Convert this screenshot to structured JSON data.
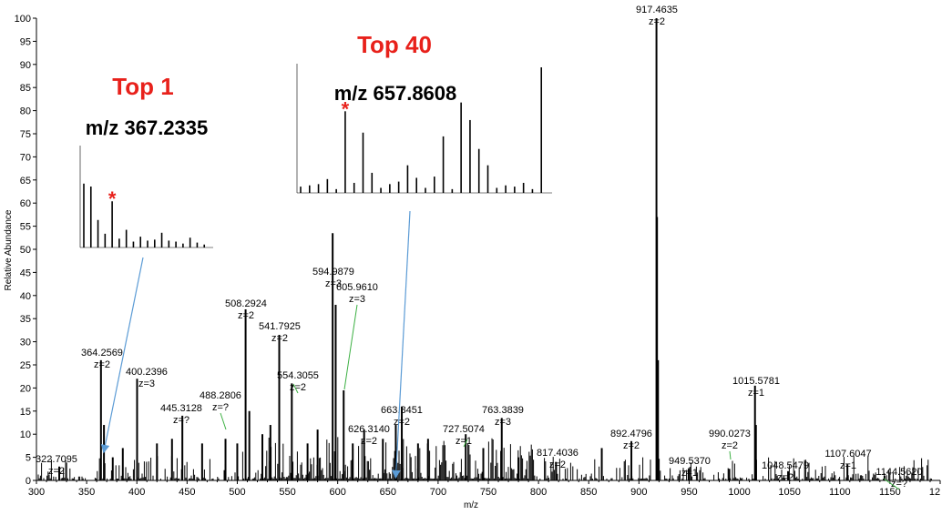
{
  "chart_data": {
    "type": "bar",
    "xlabel": "m/z",
    "ylabel": "Relative Abundance",
    "xlim": [
      300,
      1200
    ],
    "ylim": [
      0,
      100
    ],
    "x_ticks": [
      "300",
      "350",
      "400",
      "450",
      "500",
      "550",
      "600",
      "650",
      "700",
      "750",
      "800",
      "850",
      "900",
      "950",
      "1000",
      "1050",
      "1100",
      "1150",
      "12"
    ],
    "y_ticks": [
      "0",
      "5",
      "10",
      "15",
      "20",
      "25",
      "30",
      "35",
      "40",
      "45",
      "50",
      "55",
      "60",
      "65",
      "70",
      "75",
      "80",
      "85",
      "90",
      "95",
      "100"
    ],
    "peaks": [
      {
        "mz": 322.7095,
        "intensity": 3,
        "label": "322.7095",
        "charge": "z=2"
      },
      {
        "mz": 364.2569,
        "intensity": 26,
        "label": "364.2569",
        "charge": "z=2"
      },
      {
        "mz": 367.2335,
        "intensity": 12
      },
      {
        "mz": 376.0,
        "intensity": 5
      },
      {
        "mz": 386.0,
        "intensity": 7
      },
      {
        "mz": 400.2396,
        "intensity": 22,
        "label": "400.2396",
        "charge": "z=3"
      },
      {
        "mz": 420.0,
        "intensity": 8
      },
      {
        "mz": 435.0,
        "intensity": 9
      },
      {
        "mz": 445.3128,
        "intensity": 14,
        "label": "445.3128",
        "charge": "z=?"
      },
      {
        "mz": 465.0,
        "intensity": 8
      },
      {
        "mz": 488.2806,
        "intensity": 9,
        "label": "488.2806",
        "charge": "z=?"
      },
      {
        "mz": 500.0,
        "intensity": 8
      },
      {
        "mz": 508.2924,
        "intensity": 37,
        "label": "508.2924",
        "charge": "z=2"
      },
      {
        "mz": 512.0,
        "intensity": 15
      },
      {
        "mz": 525.0,
        "intensity": 10
      },
      {
        "mz": 533.0,
        "intensity": 12
      },
      {
        "mz": 541.7925,
        "intensity": 31.5,
        "label": "541.7925",
        "charge": "z=2"
      },
      {
        "mz": 554.3055,
        "intensity": 21,
        "label": "554.3055",
        "charge": "z=2"
      },
      {
        "mz": 570.0,
        "intensity": 8
      },
      {
        "mz": 580.0,
        "intensity": 11
      },
      {
        "mz": 594.9879,
        "intensity": 53.5,
        "label": "594.9879",
        "charge": "z=3"
      },
      {
        "mz": 598.0,
        "intensity": 38
      },
      {
        "mz": 605.961,
        "intensity": 19.5,
        "label": "605.9610",
        "charge": "z=3"
      },
      {
        "mz": 615.0,
        "intensity": 8
      },
      {
        "mz": 626.314,
        "intensity": 11,
        "label": "626.3140",
        "charge": "z=2"
      },
      {
        "mz": 645.0,
        "intensity": 9
      },
      {
        "mz": 657.8608,
        "intensity": 12
      },
      {
        "mz": 663.8451,
        "intensity": 16,
        "label": "663.8451",
        "charge": "z=2"
      },
      {
        "mz": 680.0,
        "intensity": 8
      },
      {
        "mz": 690.0,
        "intensity": 9
      },
      {
        "mz": 727.5074,
        "intensity": 10,
        "label": "727.5074",
        "charge": "z=1"
      },
      {
        "mz": 745.0,
        "intensity": 7
      },
      {
        "mz": 763.3839,
        "intensity": 13.5,
        "label": "763.3839",
        "charge": "z=3"
      },
      {
        "mz": 780.0,
        "intensity": 5
      },
      {
        "mz": 817.4036,
        "intensity": 4,
        "label": "817.4036",
        "charge": "z=2"
      },
      {
        "mz": 863.0,
        "intensity": 7
      },
      {
        "mz": 892.4796,
        "intensity": 8.5,
        "label": "892.4796",
        "charge": "z=2"
      },
      {
        "mz": 917.4635,
        "intensity": 100,
        "label": "917.4635",
        "charge": "z=2"
      },
      {
        "mz": 918.0,
        "intensity": 57
      },
      {
        "mz": 919.0,
        "intensity": 26
      },
      {
        "mz": 949.537,
        "intensity": 2.5,
        "label": "949.5370",
        "charge": "z=1"
      },
      {
        "mz": 990.0273,
        "intensity": 2.5,
        "label": "990.0273",
        "charge": "z=2"
      },
      {
        "mz": 1015.5781,
        "intensity": 20.5,
        "label": "1015.5781",
        "charge": "z=1"
      },
      {
        "mz": 1016.5,
        "intensity": 12
      },
      {
        "mz": 1048.5479,
        "intensity": 2,
        "label": "1048.5479",
        "charge": "z=?"
      },
      {
        "mz": 1107.6047,
        "intensity": 3.5,
        "label": "1107.6047",
        "charge": "z=1"
      },
      {
        "mz": 1144.562,
        "intensity": 1,
        "label": "1144.5620",
        "charge": "z=?"
      }
    ],
    "annotations": [
      {
        "title": "Top 1",
        "precursor": "m/z 367.2335",
        "points_to_mz": 367.2335
      },
      {
        "title": "Top 40",
        "precursor": "m/z 657.8608",
        "points_to_mz": 657.8608
      }
    ],
    "inset_1_peaks": [
      65,
      62,
      28,
      14,
      47,
      9,
      18,
      6,
      11,
      7,
      8,
      15,
      7,
      6,
      4,
      10,
      5,
      3
    ],
    "inset_2_peaks": [
      5,
      6,
      7,
      11,
      3,
      65,
      8,
      48,
      16,
      4,
      7,
      9,
      22,
      12,
      4,
      13,
      45,
      3,
      72,
      58,
      35,
      22,
      4,
      6,
      5,
      8,
      3,
      100
    ],
    "colors": {
      "title": "#e8211b",
      "arrow": "#5b9bd5",
      "label_line": "#3cb043",
      "peak": "#000000"
    }
  }
}
